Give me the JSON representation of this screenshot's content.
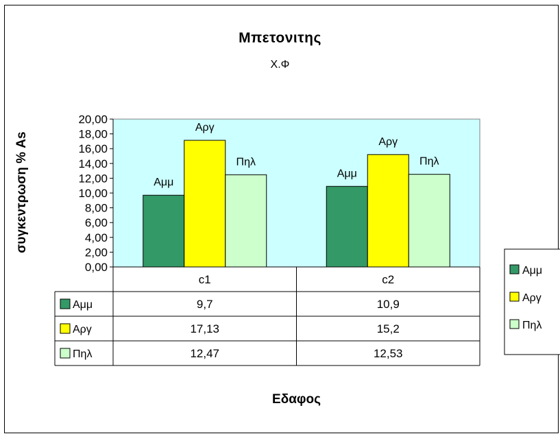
{
  "chart_data": {
    "type": "bar",
    "title": "Μπετονιτης",
    "subtitle": "Χ.Φ",
    "xlabel": "Εδαφος",
    "ylabel": "συγκεντρωση % As",
    "categories": [
      "c1",
      "c2"
    ],
    "series": [
      {
        "name": "Αμμ",
        "color": "#339966",
        "values": [
          9.7,
          10.9
        ],
        "value_labels": [
          "9,7",
          "10,9"
        ]
      },
      {
        "name": "Αργ",
        "color": "#ffff00",
        "values": [
          17.13,
          15.2
        ],
        "value_labels": [
          "17,13",
          "15,2"
        ]
      },
      {
        "name": "Πηλ",
        "color": "#ccffcc",
        "values": [
          12.47,
          12.53
        ],
        "value_labels": [
          "12,47",
          "12,53"
        ]
      }
    ],
    "ylim": [
      0,
      20
    ],
    "yticks": [
      0,
      2,
      4,
      6,
      8,
      10,
      12,
      14,
      16,
      18,
      20
    ],
    "ytick_labels": [
      "0,00",
      "2,00",
      "4,00",
      "6,00",
      "8,00",
      "10,00",
      "12,00",
      "14,00",
      "16,00",
      "18,00",
      "20,00"
    ],
    "plot_background": "#ccffff",
    "grid": false,
    "legend_position": "right",
    "data_table": true
  }
}
